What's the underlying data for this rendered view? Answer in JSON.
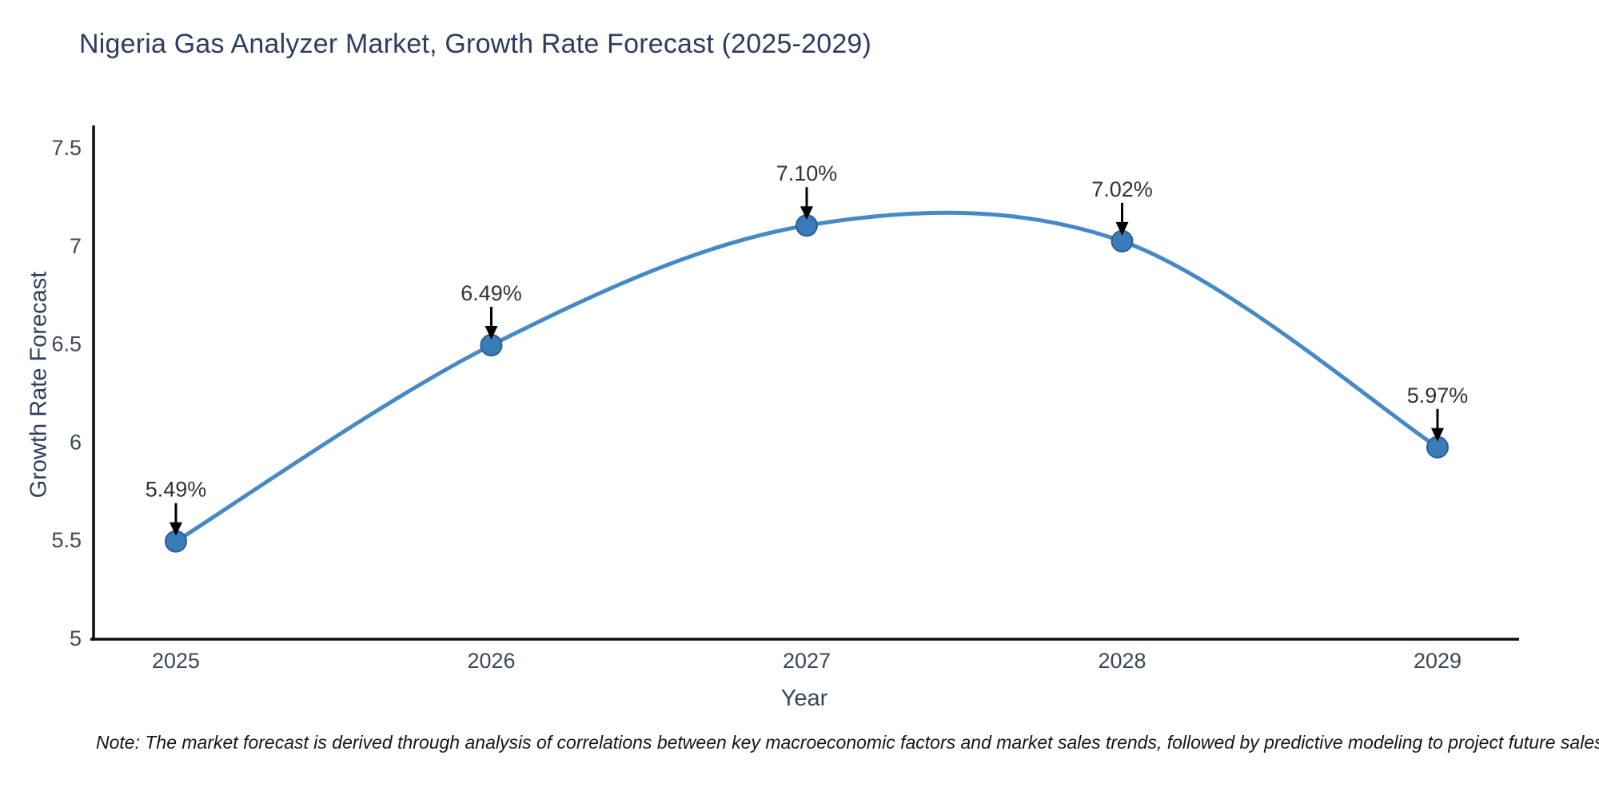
{
  "note": "Note: The market forecast is derived through analysis of correlations between key macroeconomic factors and market sales trends, followed by predictive modeling to project future sales",
  "chart_data": {
    "type": "line",
    "title": "Nigeria Gas Analyzer Market, Growth Rate Forecast (2025-2029)",
    "xlabel": "Year",
    "ylabel": "Growth Rate Forecast",
    "x": [
      2025,
      2026,
      2027,
      2028,
      2029
    ],
    "series": [
      {
        "name": "Growth Rate Forecast",
        "values": [
          5.49,
          6.49,
          7.1,
          7.02,
          5.97
        ]
      }
    ],
    "point_labels": [
      "5.49%",
      "6.49%",
      "7.10%",
      "7.02%",
      "5.97%"
    ],
    "xtick_labels": [
      "2025",
      "2026",
      "2027",
      "2028",
      "2029"
    ],
    "yticks": [
      5,
      5.5,
      6,
      6.5,
      7,
      7.5
    ],
    "ytick_labels": [
      "5",
      "5.5",
      "6",
      "6.5",
      "7",
      "7.5"
    ],
    "ylim": [
      5,
      7.5
    ],
    "grid": false,
    "legend": "none",
    "line_smoothing": "spline",
    "colors": {
      "line": "#4689c4",
      "marker_fill": "#3a7cba",
      "marker_edge": "#2a608f",
      "axis": "#0d0d0d",
      "tick_text": "#3c4757",
      "annotation_text": "#333333",
      "annotation_arrow": "#000000",
      "title_text": "#2e3d5e",
      "background": "#ffffff"
    }
  }
}
